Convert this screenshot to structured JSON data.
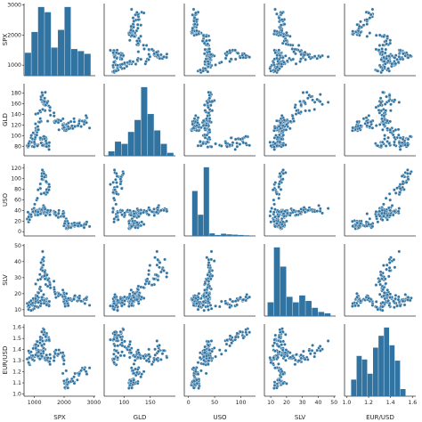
{
  "chart_data": {
    "type": "scatter",
    "subtype": "pairplot",
    "variables": [
      "SPX",
      "GLD",
      "USO",
      "SLV",
      "EUR/USD"
    ],
    "axis_labels": [
      "SPX",
      "GLD",
      "USO",
      "SLV",
      "EUR/USD"
    ],
    "axis_ranges": {
      "SPX": [
        650,
        3050
      ],
      "GLD": [
        62,
        198
      ],
      "USO": [
        -8,
        128
      ],
      "SLV": [
        6,
        51
      ],
      "EUR/USD": [
        0.98,
        1.63
      ]
    },
    "ticks": {
      "SPX": [
        "1000",
        "2000",
        "3000"
      ],
      "GLD": [
        "80",
        "100",
        "120",
        "140",
        "160",
        "180"
      ],
      "USO": [
        "0",
        "20",
        "40",
        "60",
        "80",
        "100",
        "120"
      ],
      "SLV": [
        "10",
        "20",
        "30",
        "40",
        "50"
      ],
      "EUR/USD": [
        "1.0",
        "1.1",
        "1.2",
        "1.3",
        "1.4",
        "1.5",
        "1.6"
      ]
    },
    "x_ticks": {
      "SPX": [
        "1000",
        "2000",
        "3000"
      ],
      "GLD": [
        "100",
        "150"
      ],
      "USO": [
        "0",
        "50",
        "100"
      ],
      "SLV": [
        "10",
        "20",
        "30",
        "40",
        "50"
      ],
      "EUR/USD": [
        "1.0",
        "1.2",
        "1.4",
        "1.6"
      ]
    },
    "histograms": {
      "SPX": {
        "edges": [
          676,
          899,
          1122,
          1345,
          1568,
          1791,
          2014,
          2237,
          2460,
          2683,
          2906
        ],
        "counts": [
          110,
          210,
          330,
          305,
          135,
          220,
          330,
          128,
          118,
          105
        ]
      },
      "GLD": {
        "edges": [
          70,
          82.5,
          95,
          107.5,
          120,
          132.5,
          145,
          157.5,
          170,
          182.5,
          195
        ],
        "counts": [
          30,
          95,
          80,
          160,
          240,
          460,
          280,
          170,
          80,
          20
        ]
      },
      "USO": {
        "edges": [
          7,
          18,
          29,
          40,
          51,
          62,
          73,
          84,
          95,
          106,
          117
        ],
        "counts": [
          700,
          330,
          1070,
          40,
          15,
          35,
          25,
          20,
          15,
          10
        ]
      },
      "SLV": {
        "edges": [
          8,
          12,
          16,
          20,
          24,
          28,
          32,
          36,
          40,
          44,
          48
        ],
        "counts": [
          100,
          500,
          360,
          140,
          100,
          150,
          110,
          60,
          30,
          20
        ]
      },
      "EUR/USD": {
        "edges": [
          1.04,
          1.09,
          1.14,
          1.19,
          1.24,
          1.29,
          1.34,
          1.39,
          1.44,
          1.49,
          1.54
        ],
        "counts": [
          70,
          170,
          155,
          95,
          205,
          255,
          290,
          215,
          150,
          30
        ]
      }
    },
    "trajectory": [
      {
        "SPX": 1400,
        "GLD": 84,
        "USO": 72,
        "SLV": 13,
        "EUR/USD": 1.47
      },
      {
        "SPX": 1460,
        "GLD": 82,
        "USO": 88,
        "SLV": 15,
        "EUR/USD": 1.5
      },
      {
        "SPX": 1330,
        "GLD": 88,
        "USO": 105,
        "SLV": 17,
        "EUR/USD": 1.55
      },
      {
        "SPX": 1270,
        "GLD": 92,
        "USO": 112,
        "SLV": 17.5,
        "EUR/USD": 1.58
      },
      {
        "SPX": 1150,
        "GLD": 86,
        "USO": 75,
        "SLV": 13,
        "EUR/USD": 1.45
      },
      {
        "SPX": 900,
        "GLD": 80,
        "USO": 35,
        "SLV": 10,
        "EUR/USD": 1.27
      },
      {
        "SPX": 780,
        "GLD": 88,
        "USO": 25,
        "SLV": 12.5,
        "EUR/USD": 1.3
      },
      {
        "SPX": 950,
        "GLD": 95,
        "USO": 35,
        "SLV": 14,
        "EUR/USD": 1.42
      },
      {
        "SPX": 1100,
        "GLD": 110,
        "USO": 37,
        "SLV": 17,
        "EUR/USD": 1.45
      },
      {
        "SPX": 1100,
        "GLD": 118,
        "USO": 35,
        "SLV": 18,
        "EUR/USD": 1.35
      },
      {
        "SPX": 1200,
        "GLD": 135,
        "USO": 38,
        "SLV": 25,
        "EUR/USD": 1.33
      },
      {
        "SPX": 1300,
        "GLD": 160,
        "USO": 40,
        "SLV": 45,
        "EUR/USD": 1.42
      },
      {
        "SPX": 1250,
        "GLD": 175,
        "USO": 38,
        "SLV": 35,
        "EUR/USD": 1.4
      },
      {
        "SPX": 1350,
        "GLD": 165,
        "USO": 40,
        "SLV": 32,
        "EUR/USD": 1.3
      },
      {
        "SPX": 1450,
        "GLD": 160,
        "USO": 38,
        "SLV": 30,
        "EUR/USD": 1.3
      },
      {
        "SPX": 1600,
        "GLD": 135,
        "USO": 35,
        "SLV": 23,
        "EUR/USD": 1.33
      },
      {
        "SPX": 1800,
        "GLD": 125,
        "USO": 35,
        "SLV": 20,
        "EUR/USD": 1.37
      },
      {
        "SPX": 1950,
        "GLD": 122,
        "USO": 33,
        "SLV": 19,
        "EUR/USD": 1.38
      },
      {
        "SPX": 2000,
        "GLD": 115,
        "USO": 20,
        "SLV": 16,
        "EUR/USD": 1.12
      },
      {
        "SPX": 2050,
        "GLD": 110,
        "USO": 12,
        "SLV": 15,
        "EUR/USD": 1.09
      },
      {
        "SPX": 2100,
        "GLD": 112,
        "USO": 10,
        "SLV": 15,
        "EUR/USD": 1.1
      },
      {
        "SPX": 2200,
        "GLD": 120,
        "USO": 12,
        "SLV": 17,
        "EUR/USD": 1.12
      },
      {
        "SPX": 2400,
        "GLD": 122,
        "USO": 12,
        "SLV": 16,
        "EUR/USD": 1.15
      },
      {
        "SPX": 2650,
        "GLD": 125,
        "USO": 13,
        "SLV": 16,
        "EUR/USD": 1.2
      },
      {
        "SPX": 2800,
        "GLD": 128,
        "USO": 13,
        "SLV": 15,
        "EUR/USD": 1.23
      }
    ],
    "colors": {
      "hist": "#3274a1",
      "point_fill": "#3274a1",
      "point_edge": "#ffffff",
      "axis": "#333333"
    },
    "legend": "none",
    "grid": false
  }
}
